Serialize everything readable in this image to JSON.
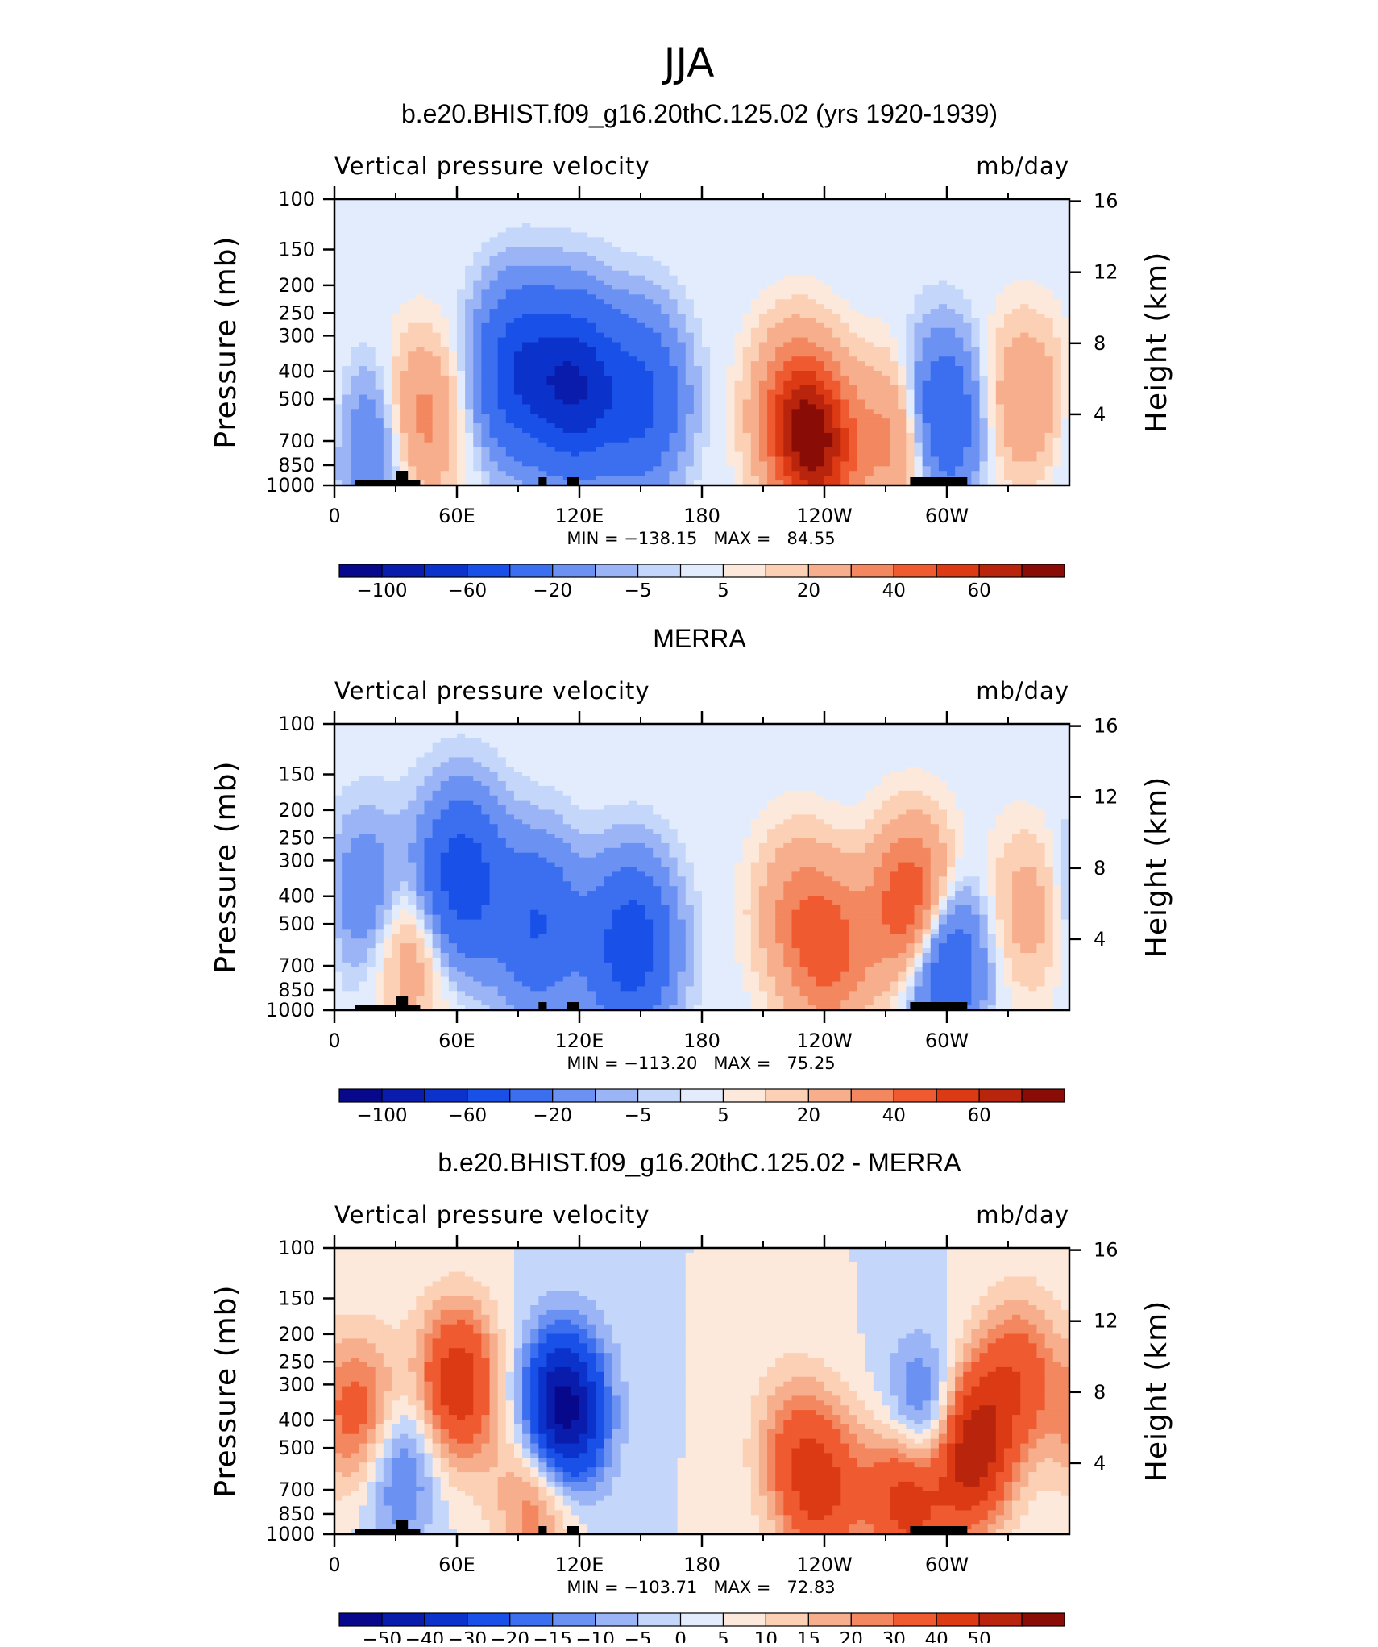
{
  "figure": {
    "title": "JJA"
  },
  "panels": [
    {
      "title": "b.e20.BHIST.f09_g16.20thC.125.02 (yrs 1920-1939)",
      "left_label": "Vertical pressure velocity",
      "right_label": "mb/day",
      "ylabel": "Pressure (mb)",
      "ylabel_right": "Height (km)",
      "min_max": "MIN = −138.15   MAX =   84.55",
      "colorbar_labels": [
        "−100",
        "−60",
        "−20",
        "−5",
        "5",
        "20",
        "40",
        "60"
      ],
      "palette": "full"
    },
    {
      "title": "MERRA",
      "left_label": "Vertical pressure velocity",
      "right_label": "mb/day",
      "ylabel": "Pressure (mb)",
      "ylabel_right": "Height (km)",
      "min_max": "MIN = −113.20   MAX =   75.25",
      "colorbar_labels": [
        "−100",
        "−60",
        "−20",
        "−5",
        "5",
        "20",
        "40",
        "60"
      ],
      "palette": "full"
    },
    {
      "title": "b.e20.BHIST.f09_g16.20thC.125.02 - MERRA",
      "left_label": "Vertical pressure velocity",
      "right_label": "mb/day",
      "ylabel": "Pressure (mb)",
      "ylabel_right": "Height (km)",
      "min_max": "MIN = −103.71   MAX =   72.83",
      "colorbar_labels": [
        "−50",
        "−40",
        "−30",
        "−20",
        "−15",
        "−10",
        "−5",
        "0",
        "5",
        "10",
        "15",
        "20",
        "30",
        "40",
        "50"
      ],
      "palette": "full"
    }
  ],
  "axes": {
    "x_ticks": [
      {
        "lon": 0,
        "label": "0"
      },
      {
        "lon": 60,
        "label": "60E"
      },
      {
        "lon": 120,
        "label": "120E"
      },
      {
        "lon": 180,
        "label": "180"
      },
      {
        "lon": 240,
        "label": "120W"
      },
      {
        "lon": 300,
        "label": "60W"
      }
    ],
    "x_minor": [
      30,
      90,
      150,
      210,
      270,
      330
    ],
    "x_range": [
      0,
      360
    ],
    "p_ticks": [
      {
        "p": 100,
        "label": "100"
      },
      {
        "p": 150,
        "label": "150"
      },
      {
        "p": 200,
        "label": "200"
      },
      {
        "p": 250,
        "label": "250"
      },
      {
        "p": 300,
        "label": "300"
      },
      {
        "p": 400,
        "label": "400"
      },
      {
        "p": 500,
        "label": "500"
      },
      {
        "p": 700,
        "label": "700"
      },
      {
        "p": 850,
        "label": "850"
      },
      {
        "p": 1000,
        "label": "1000"
      }
    ],
    "p_range": [
      100,
      1000
    ],
    "height_ticks": [
      {
        "km": 16,
        "label": "16"
      },
      {
        "km": 12,
        "label": "12"
      },
      {
        "km": 8,
        "label": "8"
      },
      {
        "km": 4,
        "label": "4"
      }
    ]
  },
  "colors": {
    "palette": [
      "#08088c",
      "#0a1cac",
      "#0b33cc",
      "#1850e8",
      "#3c6ef0",
      "#6b92f2",
      "#9ab4f6",
      "#c4d6fa",
      "#e2ecfd",
      "#fde9db",
      "#fbd0b5",
      "#f7ae8c",
      "#f3875f",
      "#ef5a30",
      "#db3a14",
      "#b8240c",
      "#8a0c06"
    ]
  },
  "chart_data": [
    {
      "type": "heatmap",
      "title": "b.e20.BHIST.f09_g16.20thC.125.02 (yrs 1920-1939)",
      "units": "mb/day",
      "x_range": [
        0,
        360
      ],
      "y_range_mb": [
        100,
        1000
      ],
      "min": -138.15,
      "max": 84.55,
      "levels": [
        -100,
        -80,
        -60,
        -40,
        -20,
        -10,
        -5,
        -2,
        2,
        5,
        10,
        20,
        30,
        40,
        50,
        60
      ],
      "features": [
        {
          "lon": 22,
          "p": 700,
          "value": -25
        },
        {
          "lon": 40,
          "p": 600,
          "value": 30
        },
        {
          "lon": 90,
          "p": 400,
          "value": -55
        },
        {
          "lon": 118,
          "p": 450,
          "value": -75
        },
        {
          "lon": 150,
          "p": 500,
          "value": -45
        },
        {
          "lon": 225,
          "p": 550,
          "value": 35
        },
        {
          "lon": 238,
          "p": 760,
          "value": 48
        },
        {
          "lon": 283,
          "p": 650,
          "value": 55
        },
        {
          "lon": 293,
          "p": 600,
          "value": -70
        },
        {
          "lon": 338,
          "p": 500,
          "value": 20
        }
      ]
    },
    {
      "type": "heatmap",
      "title": "MERRA",
      "units": "mb/day",
      "x_range": [
        0,
        360
      ],
      "y_range_mb": [
        100,
        1000
      ],
      "min": -113.2,
      "max": 75.25,
      "levels": [
        -100,
        -80,
        -60,
        -40,
        -20,
        -10,
        -5,
        -2,
        2,
        5,
        10,
        20,
        30,
        40,
        50,
        60
      ],
      "features": [
        {
          "lon": 15,
          "p": 400,
          "value": -20
        },
        {
          "lon": 38,
          "p": 600,
          "value": 20
        },
        {
          "lon": 62,
          "p": 350,
          "value": -55
        },
        {
          "lon": 100,
          "p": 500,
          "value": -40
        },
        {
          "lon": 145,
          "p": 600,
          "value": -55
        },
        {
          "lon": 225,
          "p": 450,
          "value": 18
        },
        {
          "lon": 243,
          "p": 620,
          "value": 32
        },
        {
          "lon": 284,
          "p": 450,
          "value": 55
        },
        {
          "lon": 297,
          "p": 650,
          "value": -50
        },
        {
          "lon": 340,
          "p": 450,
          "value": 15
        }
      ]
    },
    {
      "type": "heatmap",
      "title": "b.e20.BHIST.f09_g16.20thC.125.02 - MERRA",
      "units": "mb/day",
      "x_range": [
        0,
        360
      ],
      "y_range_mb": [
        100,
        1000
      ],
      "min": -103.71,
      "max": 72.83,
      "levels": [
        -50,
        -40,
        -30,
        -20,
        -15,
        -10,
        -5,
        0,
        5,
        10,
        15,
        20,
        30,
        40,
        50
      ],
      "features": [
        {
          "lon": 15,
          "p": 400,
          "value": 30
        },
        {
          "lon": 30,
          "p": 550,
          "value": -25
        },
        {
          "lon": 60,
          "p": 300,
          "value": 38
        },
        {
          "lon": 112,
          "p": 380,
          "value": -60
        },
        {
          "lon": 100,
          "p": 720,
          "value": 25
        },
        {
          "lon": 225,
          "p": 500,
          "value": 18
        },
        {
          "lon": 240,
          "p": 720,
          "value": 28
        },
        {
          "lon": 282,
          "p": 680,
          "value": 50
        },
        {
          "lon": 290,
          "p": 450,
          "value": -45
        },
        {
          "lon": 310,
          "p": 500,
          "value": 55
        },
        {
          "lon": 335,
          "p": 280,
          "value": 25
        }
      ]
    }
  ]
}
